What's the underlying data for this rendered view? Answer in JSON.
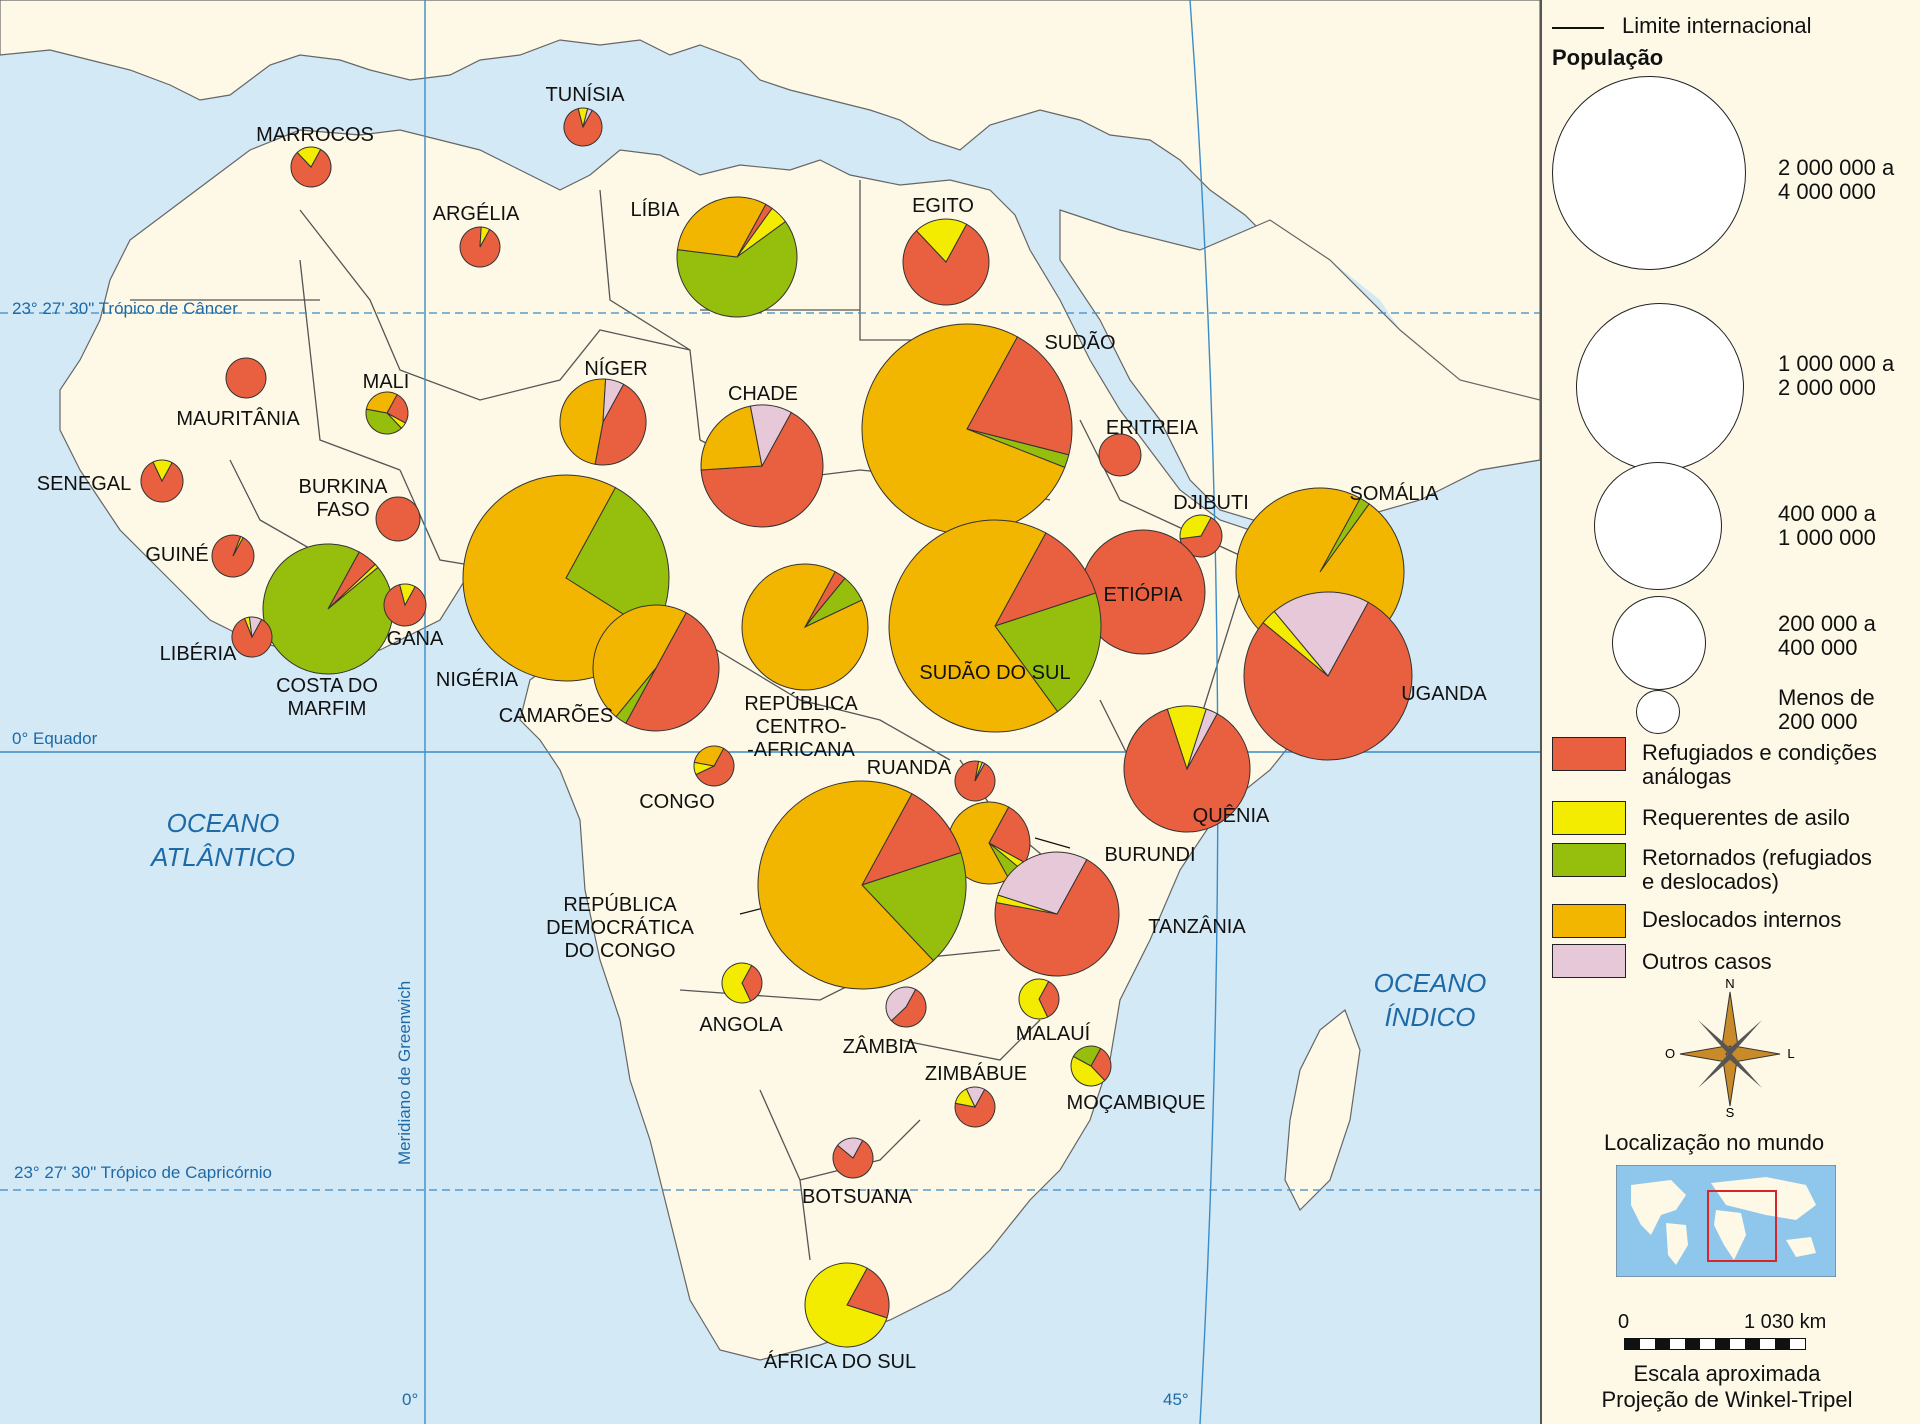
{
  "map": {
    "oceans": [
      "OCEANO",
      "ATLÂNTICO",
      "OCEANO",
      "ÍNDICO"
    ],
    "lines": {
      "cancer": "23° 27' 30\" Trópico de Câncer",
      "equator": "0° Equador",
      "capricorn": "23° 27' 30\" Trópico de Capricórnio",
      "greenwich": "Meridiano de Greenwich",
      "lon0": "0°",
      "lon45": "45°"
    },
    "countries": [
      {
        "label": [
          "MARROCOS"
        ],
        "slices": [
          0.8,
          0.2,
          0,
          0,
          0
        ]
      },
      {
        "label": [
          "TUNÍSIA"
        ],
        "slices": [
          0.88,
          0.08,
          0,
          0,
          0.04
        ]
      },
      {
        "label": [
          "ARGÉLIA"
        ],
        "slices": [
          0.93,
          0.07,
          0,
          0,
          0
        ]
      },
      {
        "label": [
          "LÍBIA"
        ],
        "slices": [
          0.02,
          0.05,
          0.62,
          0.31,
          0
        ]
      },
      {
        "label": [
          "EGITO"
        ],
        "slices": [
          0.8,
          0.2,
          0,
          0,
          0
        ]
      },
      {
        "label": [
          "SUDÃO"
        ],
        "slices": [
          0.21,
          0,
          0.02,
          0.77,
          0
        ]
      },
      {
        "label": [
          "ERITREIA"
        ],
        "slices": [
          1,
          0,
          0,
          0,
          0
        ]
      },
      {
        "label": [
          "DJIBUTI"
        ],
        "slices": [
          0.65,
          0.35,
          0,
          0,
          0
        ]
      },
      {
        "label": [
          "SOMÁLIA"
        ],
        "slices": [
          0,
          0,
          0.02,
          0.98,
          0
        ]
      },
      {
        "label": [
          "ETIÓPIA"
        ],
        "slices": [
          1,
          0,
          0,
          0,
          0
        ]
      },
      {
        "label": [
          "MAURITÂNIA"
        ],
        "slices": [
          1,
          0,
          0,
          0,
          0
        ]
      },
      {
        "label": [
          "MALI"
        ],
        "slices": [
          0.25,
          0.05,
          0.4,
          0.3,
          0
        ]
      },
      {
        "label": [
          "NÍGER"
        ],
        "slices": [
          0.45,
          0,
          0,
          0.48,
          0.07
        ]
      },
      {
        "label": [
          "CHADE"
        ],
        "slices": [
          0.66,
          0,
          0,
          0.23,
          0.11
        ]
      },
      {
        "label": [
          "SENEGAL"
        ],
        "slices": [
          0.85,
          0.15,
          0,
          0,
          0
        ]
      },
      {
        "label": [
          "BURKINA",
          "FASO"
        ],
        "slices": [
          1,
          0,
          0,
          0,
          0
        ]
      },
      {
        "label": [
          "GUINÉ"
        ],
        "slices": [
          0.98,
          0.02,
          0,
          0,
          0
        ]
      },
      {
        "label": [
          "COSTA DO",
          "MARFIM"
        ],
        "slices": [
          0.05,
          0.01,
          0.94,
          0,
          0
        ]
      },
      {
        "label": [
          "GANA"
        ],
        "slices": [
          0.88,
          0.12,
          0,
          0,
          0
        ]
      },
      {
        "label": [
          "LIBÉRIA"
        ],
        "slices": [
          0.86,
          0.04,
          0,
          0,
          0.1
        ]
      },
      {
        "label": [
          "NIGÉRIA"
        ],
        "slices": [
          0,
          0,
          0.26,
          0.74,
          0
        ]
      },
      {
        "label": [
          "CAMARÕES"
        ],
        "slices": [
          0.5,
          0,
          0.03,
          0.47,
          0
        ]
      },
      {
        "label": [
          "REPÚBLICA",
          "CENTRO-",
          "-AFRICANA"
        ],
        "slices": [
          0.03,
          0,
          0.07,
          0.9,
          0
        ]
      },
      {
        "label": [
          "SUDÃO DO SUL"
        ],
        "slices": [
          0.12,
          0,
          0.2,
          0.68,
          0
        ]
      },
      {
        "label": [
          "UGANDA"
        ],
        "slices": [
          0.78,
          0.03,
          0,
          0,
          0.19
        ]
      },
      {
        "label": [
          "QUÊNIA"
        ],
        "slices": [
          0.87,
          0.1,
          0,
          0,
          0.03
        ]
      },
      {
        "label": [
          "CONGO"
        ],
        "slices": [
          0.6,
          0.1,
          0,
          0.3,
          0
        ]
      },
      {
        "label": [
          "RUANDA"
        ],
        "slices": [
          0.95,
          0.03,
          0,
          0,
          0.02
        ]
      },
      {
        "label": [
          "BURUNDI"
        ],
        "slices": [
          0.25,
          0.03,
          0.06,
          0.66,
          0
        ]
      },
      {
        "label": [
          "REPÚBLICA",
          "DEMOCRÁTICA",
          "DO CONGO"
        ],
        "slices": [
          0.12,
          0,
          0.18,
          0.7,
          0
        ]
      },
      {
        "label": [
          "TANZÂNIA"
        ],
        "slices": [
          0.7,
          0.02,
          0,
          0,
          0.28
        ]
      },
      {
        "label": [
          "ANGOLA"
        ],
        "slices": [
          0.35,
          0.65,
          0,
          0,
          0
        ]
      },
      {
        "label": [
          "ZÂMBIA"
        ],
        "slices": [
          0.55,
          0,
          0,
          0,
          0.45
        ]
      },
      {
        "label": [
          "MALAUÍ"
        ],
        "slices": [
          0.35,
          0.65,
          0,
          0,
          0
        ]
      },
      {
        "label": [
          "MOÇAMBIQUE"
        ],
        "slices": [
          0.3,
          0.45,
          0.25,
          0,
          0
        ]
      },
      {
        "label": [
          "ZIMBÁBUE"
        ],
        "slices": [
          0.7,
          0.15,
          0,
          0,
          0.15
        ]
      },
      {
        "label": [
          "BOTSUANA"
        ],
        "slices": [
          0.78,
          0,
          0,
          0,
          0.22
        ]
      },
      {
        "label": [
          "ÁFRICA DO SUL"
        ],
        "slices": [
          0.22,
          0.78,
          0,
          0,
          0
        ]
      }
    ]
  },
  "legend": {
    "border": "Limite internacional",
    "population_title": "População",
    "sizes": [
      [
        "2 000 000 a",
        "4 000 000"
      ],
      [
        "1 000 000 a",
        "2 000 000"
      ],
      [
        "400 000 a",
        "1 000 000"
      ],
      [
        "200 000 a",
        "400 000"
      ],
      [
        "Menos de",
        "200 000"
      ]
    ],
    "categories": [
      {
        "label": [
          "Refugiados e condições",
          "análogas"
        ],
        "color": "#e8603f"
      },
      {
        "label": [
          "Requerentes de asilo"
        ],
        "color": "#f4ec00"
      },
      {
        "label": [
          "Retornados (refugiados",
          "e deslocados)"
        ],
        "color": "#96bf0d"
      },
      {
        "label": [
          "Deslocados internos"
        ],
        "color": "#f3b600"
      },
      {
        "label": [
          "Outros casos"
        ],
        "color": "#e7c8d8"
      }
    ],
    "compass": {
      "n": "N",
      "s": "S",
      "o": "O",
      "l": "L"
    },
    "location_title": "Localização no mundo",
    "scale": {
      "zero": "0",
      "end": "1 030 km",
      "label": "Escala aproximada"
    },
    "projection": "Projeção de Winkel-Tripel"
  }
}
